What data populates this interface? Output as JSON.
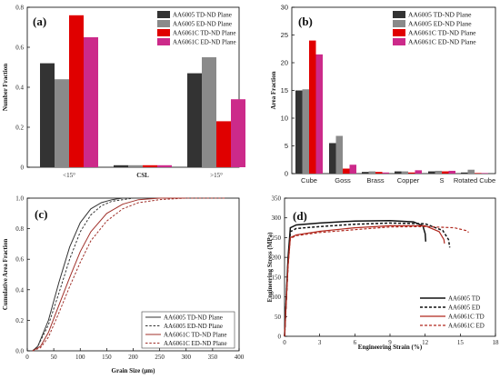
{
  "colors": {
    "aa6005_td": "#333333",
    "aa6005_ed": "#8a8a8a",
    "aa6061c_td": "#e00000",
    "aa6061c_ed": "#cc2a8a",
    "strain_6005_td": "#111111",
    "strain_6061c": "#b0281e",
    "cum_6061c": "#a0302a"
  },
  "chart_data": [
    {
      "type": "bar",
      "panel_label": "(a)",
      "ylabel": "Number Fraction",
      "categories": [
        "<15°",
        "CSL",
        ">15°"
      ],
      "ylim": [
        0,
        0.8
      ],
      "yticks": [
        "0",
        "0.2",
        "0.4",
        "0.6",
        "0.8"
      ],
      "series": [
        {
          "name": "AA6005    TD-ND Plane",
          "values": [
            0.52,
            0.01,
            0.47
          ]
        },
        {
          "name": "AA6005    ED-ND Plane",
          "values": [
            0.44,
            0.01,
            0.55
          ]
        },
        {
          "name": "AA6061C TD-ND Plane",
          "values": [
            0.76,
            0.01,
            0.23
          ]
        },
        {
          "name": "AA6061C ED-ND Plane",
          "values": [
            0.65,
            0.01,
            0.34
          ]
        }
      ],
      "legend_position": "top-right"
    },
    {
      "type": "bar",
      "panel_label": "(b)",
      "ylabel": "Area Fraction",
      "categories": [
        "Cube",
        "Goss",
        "Brass",
        "Copper",
        "S",
        "Rotated Cube"
      ],
      "ylim": [
        0,
        30
      ],
      "yticks": [
        "0",
        "5",
        "10",
        "15",
        "20",
        "25",
        "30"
      ],
      "series": [
        {
          "name": "AA6005    TD-ND Plane",
          "values": [
            15.0,
            5.5,
            0.3,
            0.4,
            0.4,
            0.2
          ]
        },
        {
          "name": "AA6005    ED-ND Plane",
          "values": [
            15.2,
            6.8,
            0.4,
            0.4,
            0.5,
            0.7
          ]
        },
        {
          "name": "AA6061C TD-ND Plane",
          "values": [
            24.0,
            0.9,
            0.3,
            0.2,
            0.4,
            0.1
          ]
        },
        {
          "name": "AA6061C ED-ND Plane",
          "values": [
            21.5,
            1.6,
            0.2,
            0.6,
            0.5,
            0.1
          ]
        }
      ],
      "legend_position": "top-right"
    },
    {
      "type": "line",
      "panel_label": "(c)",
      "xlabel": "Grain Size (μm)",
      "ylabel": "Cumulative Area Fraction",
      "xlim": [
        0,
        400
      ],
      "ylim": [
        0,
        1.0
      ],
      "xticks": [
        "0",
        "50",
        "100",
        "150",
        "200",
        "250",
        "300",
        "350",
        "400"
      ],
      "yticks": [
        "0.0",
        "0.2",
        "0.4",
        "0.6",
        "0.8",
        "1.0"
      ],
      "series": [
        {
          "name": "AA6005    TD-ND Plane",
          "x": [
            10,
            20,
            40,
            60,
            80,
            100,
            120,
            140,
            160,
            180,
            200,
            210
          ],
          "y": [
            0.0,
            0.03,
            0.2,
            0.45,
            0.68,
            0.84,
            0.93,
            0.97,
            0.99,
            1.0,
            1.0,
            1.0
          ]
        },
        {
          "name": "AA6005    ED-ND Plane",
          "x": [
            10,
            20,
            40,
            60,
            80,
            100,
            120,
            140,
            160,
            180,
            200,
            220
          ],
          "y": [
            0.0,
            0.03,
            0.17,
            0.38,
            0.6,
            0.78,
            0.89,
            0.95,
            0.98,
            0.99,
            1.0,
            1.0
          ]
        },
        {
          "name": "AA6061C TD-ND Plane",
          "x": [
            10,
            25,
            40,
            60,
            80,
            100,
            120,
            150,
            180,
            210,
            250,
            300
          ],
          "y": [
            0.0,
            0.03,
            0.12,
            0.3,
            0.48,
            0.65,
            0.78,
            0.9,
            0.96,
            0.99,
            1.0,
            1.0
          ]
        },
        {
          "name": "AA6061C ED-ND Plane",
          "x": [
            10,
            25,
            40,
            60,
            80,
            100,
            120,
            150,
            180,
            210,
            250,
            300,
            350,
            375
          ],
          "y": [
            0.0,
            0.02,
            0.09,
            0.25,
            0.42,
            0.58,
            0.72,
            0.85,
            0.93,
            0.97,
            0.99,
            1.0,
            1.0,
            1.0
          ]
        }
      ],
      "legend_position": "bottom-right"
    },
    {
      "type": "line",
      "panel_label": "(d)",
      "xlabel": "Engineering Strain (%)",
      "ylabel": "Engineering Stress (MPa)",
      "xlim": [
        0,
        18
      ],
      "ylim": [
        0,
        350
      ],
      "xticks": [
        "0",
        "3",
        "6",
        "9",
        "12",
        "15",
        "18"
      ],
      "yticks": [
        "0",
        "50",
        "100",
        "150",
        "200",
        "250",
        "300",
        "350"
      ],
      "series": [
        {
          "name": "AA6005    TD",
          "x": [
            0,
            0.3,
            0.5,
            1,
            3,
            6,
            9,
            11,
            11.8,
            12.0,
            12.05
          ],
          "y": [
            0,
            200,
            275,
            282,
            287,
            292,
            293,
            290,
            280,
            260,
            240
          ]
        },
        {
          "name": "AA6005    ED",
          "x": [
            0,
            0.3,
            0.5,
            1,
            3,
            6,
            9,
            12,
            13.5,
            14.0,
            14.1
          ],
          "y": [
            0,
            190,
            265,
            273,
            278,
            284,
            287,
            285,
            268,
            245,
            225
          ]
        },
        {
          "name": "AA6061C TD",
          "x": [
            0,
            0.3,
            0.5,
            1,
            3,
            6,
            9,
            12,
            13.2,
            13.6,
            13.65
          ],
          "y": [
            0,
            180,
            250,
            257,
            266,
            275,
            280,
            280,
            265,
            245,
            235
          ]
        },
        {
          "name": "AA6061C ED",
          "x": [
            0,
            0.3,
            0.5,
            1,
            3,
            6,
            9,
            12,
            14.5,
            15.6,
            15.7
          ],
          "y": [
            0,
            180,
            248,
            255,
            263,
            270,
            277,
            278,
            275,
            267,
            263
          ]
        }
      ],
      "legend_position": "bottom-right"
    }
  ]
}
